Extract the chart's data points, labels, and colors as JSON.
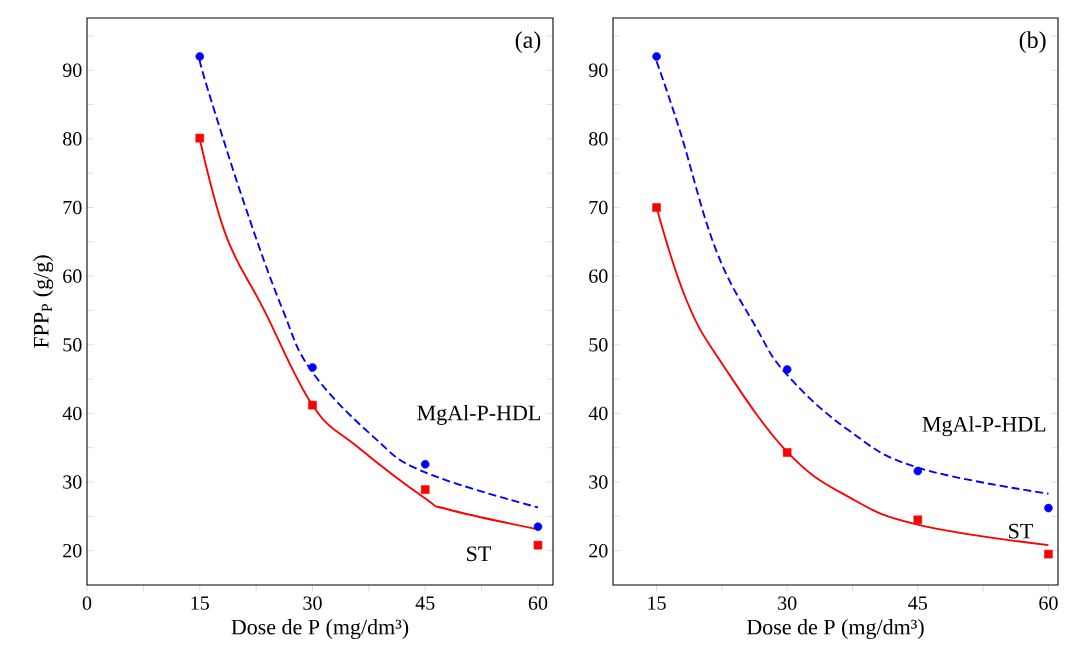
{
  "chart_data": [
    {
      "type": "scatter",
      "title": "(a)",
      "xlabel": "Dose de P (mg/dm³)",
      "ylabel": "FPP$_{P}$ (g/g)",
      "xlim": [
        0,
        62
      ],
      "ylim": [
        15,
        97.6
      ],
      "xticks": [
        0,
        {
          "value": 7.5,
          "label": null
        },
        15,
        {
          "value": 22.5,
          "label": null
        },
        30,
        {
          "value": 37.5,
          "label": null
        },
        45,
        {
          "value": 52.5,
          "label": null
        },
        60
      ],
      "yticks": [
        20,
        {
          "value": 25,
          "label": null
        },
        30,
        {
          "value": 35,
          "label": null
        },
        40,
        {
          "value": 45,
          "label": null
        },
        50,
        {
          "value": 55,
          "label": null
        },
        60,
        {
          "value": 65,
          "label": null
        },
        70,
        {
          "value": 75,
          "label": null
        },
        80,
        {
          "value": 85,
          "label": null
        },
        90,
        {
          "value": 95,
          "label": null
        }
      ],
      "series": [
        {
          "type": "line",
          "color": "#0000ff",
          "line_style": "dashed",
          "x": [
            15,
            16.1,
            21,
            26,
            30,
            38.3,
            45,
            60
          ],
          "values": [
            91.5,
            87.1,
            70.3,
            55.2,
            46.0,
            36.4,
            31.4,
            26.3
          ]
        },
        {
          "type": "line",
          "color": "#ff0000",
          "line_style": "solid",
          "x": [
            15,
            18.5,
            23.5,
            30,
            35.9,
            45,
            48.1,
            60
          ],
          "values": [
            80,
            65.9,
            55.2,
            41.2,
            35.2,
            27.6,
            26.0,
            23.1
          ]
        },
        {
          "name": "MgAl-P-HDL",
          "type": "scatter",
          "color": "#0000ff",
          "marker": "circle",
          "x": [
            15,
            30,
            45,
            60
          ],
          "values": [
            92.0,
            46.7,
            32.6,
            23.5
          ]
        },
        {
          "name": "ST",
          "type": "scatter",
          "color": "#ff0000",
          "marker": "square",
          "x": [
            15,
            30,
            45,
            60
          ],
          "values": [
            80.1,
            41.2,
            28.9,
            20.8
          ]
        }
      ]
    },
    {
      "type": "scatter",
      "title": "(b)",
      "xlabel": "Dose de P (mg/dm³)",
      "xlim": [
        10,
        61.1
      ],
      "ylim": [
        15,
        97.6
      ],
      "xticks": [
        15,
        {
          "value": 22.5,
          "label": null
        },
        30,
        {
          "value": 37.5,
          "label": null
        },
        45,
        {
          "value": 52.5,
          "label": null
        },
        60
      ],
      "yticks": [
        20,
        {
          "value": 25,
          "label": null
        },
        30,
        {
          "value": 35,
          "label": null
        },
        40,
        {
          "value": 45,
          "label": null
        },
        50,
        {
          "value": 55,
          "label": null
        },
        60,
        {
          "value": 65,
          "label": null
        },
        70,
        {
          "value": 75,
          "label": null
        },
        80,
        {
          "value": 85,
          "label": null
        },
        90,
        {
          "value": 95,
          "label": null
        }
      ],
      "series": [
        {
          "type": "line",
          "color": "#0000ff",
          "line_style": "dashed",
          "x": [
            15,
            17.7,
            21.8,
            26.4,
            30,
            37.1,
            45,
            60
          ],
          "values": [
            91.3,
            81.1,
            63.9,
            52.6,
            45.6,
            37.5,
            32.1,
            28.3
          ]
        },
        {
          "type": "line",
          "color": "#ff0000",
          "line_style": "solid",
          "x": [
            15,
            18.5,
            22.6,
            30,
            37.1,
            45,
            60
          ],
          "values": [
            70,
            56.3,
            47.1,
            34.4,
            27.8,
            23.8,
            20.8
          ]
        },
        {
          "name": "MgAl-P-HDL",
          "type": "scatter",
          "color": "#0000ff",
          "marker": "circle",
          "x": [
            15,
            30,
            45,
            60
          ],
          "values": [
            92.0,
            46.4,
            31.6,
            26.2
          ]
        },
        {
          "name": "ST",
          "type": "scatter",
          "color": "#ff0000",
          "marker": "square",
          "x": [
            15,
            30,
            45,
            60
          ],
          "values": [
            70.0,
            34.3,
            24.5,
            19.5
          ]
        }
      ]
    }
  ]
}
